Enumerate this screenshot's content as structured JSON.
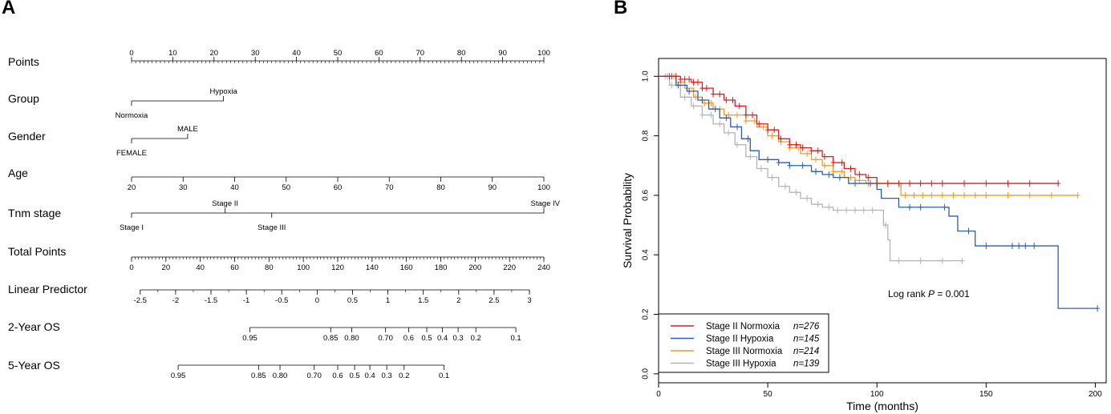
{
  "panels": {
    "a": "A",
    "b": "B"
  },
  "nomogram": {
    "rows": [
      {
        "id": "points",
        "label": "Points",
        "scale": "points",
        "ticks": [
          {
            "v": 0,
            "t": "0"
          },
          {
            "v": 10,
            "t": "10"
          },
          {
            "v": 20,
            "t": "20"
          },
          {
            "v": 30,
            "t": "30"
          },
          {
            "v": 40,
            "t": "40"
          },
          {
            "v": 50,
            "t": "50"
          },
          {
            "v": 60,
            "t": "60"
          },
          {
            "v": 70,
            "t": "70"
          },
          {
            "v": 80,
            "t": "80"
          },
          {
            "v": 90,
            "t": "90"
          },
          {
            "v": 100,
            "t": "100"
          }
        ],
        "minor_step": 1,
        "range": [
          0,
          100
        ]
      },
      {
        "id": "group",
        "label": "Group",
        "scale": "categorical",
        "levels": [
          {
            "name": "Normoxia",
            "points": 0,
            "pos": "below"
          },
          {
            "name": "Hypoxia",
            "points": 22.3,
            "pos": "above"
          }
        ]
      },
      {
        "id": "gender",
        "label": "Gender",
        "scale": "categorical",
        "levels": [
          {
            "name": "FEMALE",
            "points": 0,
            "pos": "below"
          },
          {
            "name": "MALE",
            "points": 13.6,
            "pos": "above"
          }
        ]
      },
      {
        "id": "age",
        "label": "Age",
        "scale": "linear",
        "range": [
          20,
          100
        ],
        "points_range": [
          0,
          100
        ],
        "ticks": [
          {
            "v": 20,
            "t": "20"
          },
          {
            "v": 30,
            "t": "30"
          },
          {
            "v": 40,
            "t": "40"
          },
          {
            "v": 50,
            "t": "50"
          },
          {
            "v": 60,
            "t": "60"
          },
          {
            "v": 70,
            "t": "70"
          },
          {
            "v": 80,
            "t": "80"
          },
          {
            "v": 90,
            "t": "90"
          },
          {
            "v": 100,
            "t": "100"
          }
        ]
      },
      {
        "id": "tnm",
        "label": "Tnm stage",
        "scale": "categorical",
        "levels": [
          {
            "name": "Stage I",
            "points": 0,
            "pos": "below"
          },
          {
            "name": "Stage II",
            "points": 22.7,
            "pos": "above"
          },
          {
            "name": "Stage III",
            "points": 34.0,
            "pos": "below"
          },
          {
            "name": "Stage IV",
            "points": 100,
            "pos": "above"
          }
        ]
      },
      {
        "id": "total",
        "label": "Total Points",
        "scale": "linear",
        "range": [
          0,
          240
        ],
        "points_range": [
          0,
          100
        ],
        "ticks": [
          {
            "v": 0,
            "t": "0"
          },
          {
            "v": 20,
            "t": "20"
          },
          {
            "v": 40,
            "t": "40"
          },
          {
            "v": 60,
            "t": "60"
          },
          {
            "v": 80,
            "t": "80"
          },
          {
            "v": 100,
            "t": "100"
          },
          {
            "v": 120,
            "t": "120"
          },
          {
            "v": 140,
            "t": "140"
          },
          {
            "v": 160,
            "t": "160"
          },
          {
            "v": 180,
            "t": "180"
          },
          {
            "v": 200,
            "t": "200"
          },
          {
            "v": 220,
            "t": "220"
          },
          {
            "v": 240,
            "t": "240"
          }
        ],
        "minor_step": 2
      },
      {
        "id": "lp",
        "label": "Linear Predictor",
        "scale": "linear",
        "range": [
          -2.5,
          3
        ],
        "points_range": [
          2.1,
          96.5
        ],
        "ticks": [
          {
            "v": -2.5,
            "t": "-2.5"
          },
          {
            "v": -2,
            "t": "-2"
          },
          {
            "v": -1.5,
            "t": "-1.5"
          },
          {
            "v": -1,
            "t": "-1"
          },
          {
            "v": -0.5,
            "t": "-0.5"
          },
          {
            "v": 0,
            "t": "0"
          },
          {
            "v": 0.5,
            "t": "0.5"
          },
          {
            "v": 1,
            "t": "1"
          },
          {
            "v": 1.5,
            "t": "1.5"
          },
          {
            "v": 2,
            "t": "2"
          },
          {
            "v": 2.5,
            "t": "2.5"
          },
          {
            "v": 3,
            "t": "3"
          }
        ],
        "minor_step": 0.25
      },
      {
        "id": "os2",
        "label": "2-Year OS",
        "scale": "positions",
        "ticks": [
          {
            "p": 28.7,
            "t": "0.95"
          },
          {
            "p": 48.3,
            "t": "0.85"
          },
          {
            "p": 53.4,
            "t": "0.80"
          },
          {
            "p": 61.6,
            "t": "0.70"
          },
          {
            "p": 67.2,
            "t": "0.6"
          },
          {
            "p": 71.6,
            "t": "0.5"
          },
          {
            "p": 75.4,
            "t": "0.4"
          },
          {
            "p": 79.2,
            "t": "0.3"
          },
          {
            "p": 83.5,
            "t": "0.2"
          },
          {
            "p": 93.2,
            "t": "0.1"
          }
        ]
      },
      {
        "id": "os5",
        "label": "5-Year OS",
        "scale": "positions",
        "ticks": [
          {
            "p": 11.3,
            "t": "0.95"
          },
          {
            "p": 30.8,
            "t": "0.85"
          },
          {
            "p": 36.0,
            "t": "0.80"
          },
          {
            "p": 44.3,
            "t": "0.70"
          },
          {
            "p": 50.0,
            "t": "0.6"
          },
          {
            "p": 54.1,
            "t": "0.5"
          },
          {
            "p": 57.8,
            "t": "0.4"
          },
          {
            "p": 61.9,
            "t": "0.3"
          },
          {
            "p": 66.1,
            "t": "0.2"
          },
          {
            "p": 75.8,
            "t": "0.1"
          }
        ]
      }
    ]
  },
  "chart_data": {
    "type": "line",
    "step": true,
    "xlabel": "Time (months)",
    "ylabel": "Survival Probability",
    "xlim": [
      0,
      205
    ],
    "ylim": [
      -0.03,
      1.06
    ],
    "xticks": [
      0,
      50,
      100,
      150,
      200
    ],
    "yticks": [
      0.0,
      0.2,
      0.4,
      0.6,
      0.8,
      1.0
    ],
    "ytick_labels": [
      "0.0",
      "0.2",
      "0.4",
      "0.6",
      "0.8",
      "1.0"
    ],
    "annotation": {
      "prefix": "Log rank ",
      "p": "P",
      "suffix": " = 0.001"
    },
    "legend_position": "bottom-left",
    "series": [
      {
        "name": "Stage II Normoxia",
        "n": "n=276",
        "color": "#e31a1c",
        "steps": [
          [
            0,
            1
          ],
          [
            10,
            0.99
          ],
          [
            15,
            0.98
          ],
          [
            20,
            0.96
          ],
          [
            25,
            0.94
          ],
          [
            30,
            0.92
          ],
          [
            35,
            0.9
          ],
          [
            40,
            0.87
          ],
          [
            45,
            0.84
          ],
          [
            50,
            0.82
          ],
          [
            55,
            0.79
          ],
          [
            60,
            0.77
          ],
          [
            65,
            0.76
          ],
          [
            70,
            0.75
          ],
          [
            75,
            0.73
          ],
          [
            80,
            0.71
          ],
          [
            85,
            0.69
          ],
          [
            90,
            0.67
          ],
          [
            95,
            0.66
          ],
          [
            100,
            0.64
          ],
          [
            183,
            0.64
          ]
        ],
        "censor_x": [
          6,
          8,
          10,
          12,
          14,
          16,
          18,
          20,
          22,
          25,
          28,
          31,
          34,
          37,
          40,
          43,
          46,
          50,
          53,
          56,
          60,
          63,
          66,
          70,
          73,
          76,
          80,
          84,
          88,
          92,
          96,
          100,
          105,
          110,
          115,
          120,
          125,
          130,
          140,
          150,
          160,
          170,
          183
        ]
      },
      {
        "name": "Stage II Hypoxia",
        "n": "n=145",
        "color": "#2b5db8",
        "steps": [
          [
            0,
            1
          ],
          [
            8,
            0.97
          ],
          [
            13,
            0.95
          ],
          [
            18,
            0.92
          ],
          [
            23,
            0.89
          ],
          [
            28,
            0.86
          ],
          [
            33,
            0.83
          ],
          [
            38,
            0.79
          ],
          [
            42,
            0.75
          ],
          [
            46,
            0.72
          ],
          [
            55,
            0.71
          ],
          [
            60,
            0.7
          ],
          [
            70,
            0.68
          ],
          [
            75,
            0.67
          ],
          [
            80,
            0.66
          ],
          [
            87,
            0.64
          ],
          [
            100,
            0.62
          ],
          [
            102,
            0.59
          ],
          [
            110,
            0.56
          ],
          [
            120,
            0.56
          ],
          [
            133,
            0.53
          ],
          [
            137,
            0.48
          ],
          [
            145,
            0.43
          ],
          [
            183,
            0.43
          ],
          [
            183,
            0.22
          ],
          [
            201,
            0.22
          ]
        ],
        "censor_x": [
          5,
          9,
          14,
          20,
          26,
          31,
          36,
          41,
          50,
          55,
          60,
          66,
          72,
          78,
          83,
          90,
          97,
          115,
          120,
          131,
          142,
          150,
          162,
          165,
          168,
          172,
          201
        ]
      },
      {
        "name": "Stage III Normoxia",
        "n": "n=214",
        "color": "#f39a1f",
        "steps": [
          [
            0,
            1
          ],
          [
            8,
            0.98
          ],
          [
            12,
            0.96
          ],
          [
            16,
            0.93
          ],
          [
            20,
            0.91
          ],
          [
            25,
            0.89
          ],
          [
            30,
            0.87
          ],
          [
            40,
            0.85
          ],
          [
            45,
            0.83
          ],
          [
            50,
            0.8
          ],
          [
            55,
            0.78
          ],
          [
            60,
            0.76
          ],
          [
            65,
            0.74
          ],
          [
            70,
            0.72
          ],
          [
            75,
            0.7
          ],
          [
            80,
            0.68
          ],
          [
            85,
            0.66
          ],
          [
            90,
            0.65
          ],
          [
            95,
            0.64
          ],
          [
            111,
            0.64
          ],
          [
            111,
            0.6
          ],
          [
            192,
            0.6
          ]
        ],
        "censor_x": [
          4,
          7,
          10,
          13,
          17,
          21,
          24,
          28,
          32,
          36,
          40,
          44,
          48,
          52,
          56,
          60,
          64,
          68,
          72,
          76,
          80,
          84,
          88,
          92,
          96,
          100,
          105,
          113,
          117,
          121,
          125,
          130,
          135,
          140,
          145,
          150,
          160,
          170,
          180,
          192
        ]
      },
      {
        "name": "Stage III Hypoxia",
        "n": "n=139",
        "color": "#b4b4b4",
        "steps": [
          [
            0,
            1
          ],
          [
            5,
            0.97
          ],
          [
            10,
            0.93
          ],
          [
            15,
            0.9
          ],
          [
            20,
            0.87
          ],
          [
            25,
            0.84
          ],
          [
            30,
            0.81
          ],
          [
            35,
            0.77
          ],
          [
            40,
            0.73
          ],
          [
            45,
            0.69
          ],
          [
            50,
            0.66
          ],
          [
            55,
            0.63
          ],
          [
            60,
            0.61
          ],
          [
            65,
            0.59
          ],
          [
            70,
            0.57
          ],
          [
            75,
            0.56
          ],
          [
            80,
            0.55
          ],
          [
            95,
            0.55
          ],
          [
            103,
            0.5
          ],
          [
            105,
            0.45
          ],
          [
            106,
            0.38
          ],
          [
            139,
            0.38
          ]
        ],
        "censor_x": [
          3,
          6,
          9,
          12,
          16,
          20,
          24,
          28,
          32,
          36,
          42,
          47,
          52,
          58,
          63,
          68,
          73,
          78,
          82,
          86,
          90,
          94,
          98,
          104,
          110,
          120,
          130,
          139
        ]
      }
    ]
  }
}
